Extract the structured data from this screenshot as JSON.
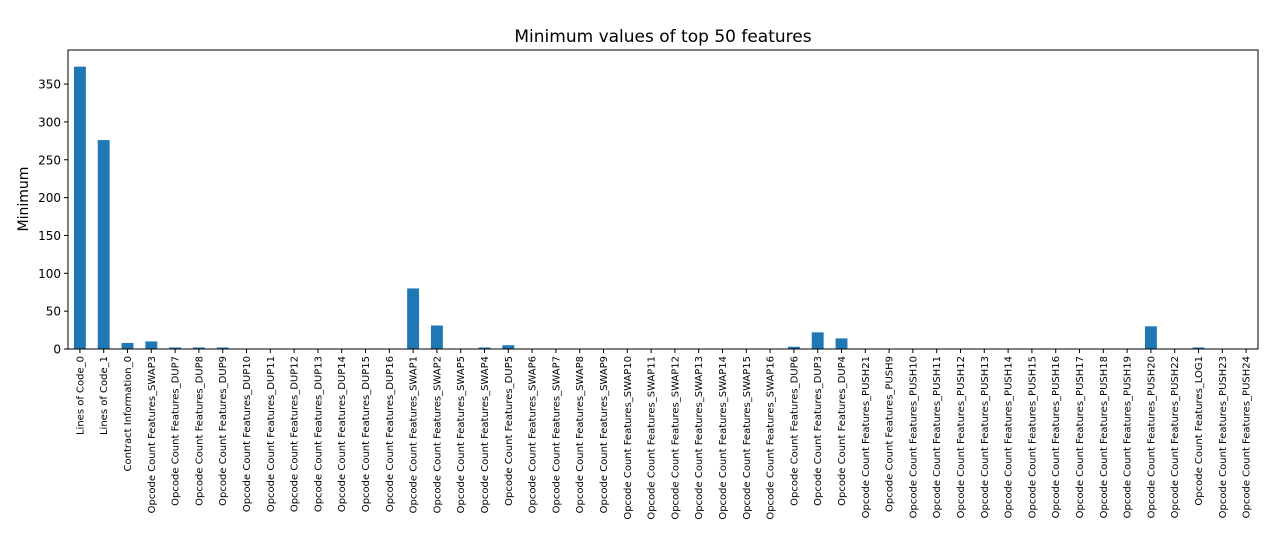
{
  "chart_data": {
    "type": "bar",
    "title": "Minimum values of top 50 features",
    "xlabel": "",
    "ylabel": "Minimum",
    "ylim": [
      0,
      395
    ],
    "yticks": [
      0,
      50,
      100,
      150,
      200,
      250,
      300,
      350
    ],
    "grid": false,
    "legend": "none",
    "bar_color": "#1f77b4",
    "categories": [
      "Lines of Code_0",
      "Lines of Code_1",
      "Contract Information_0",
      "Opcode Count Features_SWAP3",
      "Opcode Count Features_DUP7",
      "Opcode Count Features_DUP8",
      "Opcode Count Features_DUP9",
      "Opcode Count Features_DUP10",
      "Opcode Count Features_DUP11",
      "Opcode Count Features_DUP12",
      "Opcode Count Features_DUP13",
      "Opcode Count Features_DUP14",
      "Opcode Count Features_DUP15",
      "Opcode Count Features_DUP16",
      "Opcode Count Features_SWAP1",
      "Opcode Count Features_SWAP2",
      "Opcode Count Features_SWAP5",
      "Opcode Count Features_SWAP4",
      "Opcode Count Features_DUP5",
      "Opcode Count Features_SWAP6",
      "Opcode Count Features_SWAP7",
      "Opcode Count Features_SWAP8",
      "Opcode Count Features_SWAP9",
      "Opcode Count Features_SWAP10",
      "Opcode Count Features_SWAP11",
      "Opcode Count Features_SWAP12",
      "Opcode Count Features_SWAP13",
      "Opcode Count Features_SWAP14",
      "Opcode Count Features_SWAP15",
      "Opcode Count Features_SWAP16",
      "Opcode Count Features_DUP6",
      "Opcode Count Features_DUP3",
      "Opcode Count Features_DUP4",
      "Opcode Count Features_PUSH21",
      "Opcode Count Features_PUSH9",
      "Opcode Count Features_PUSH10",
      "Opcode Count Features_PUSH11",
      "Opcode Count Features_PUSH12",
      "Opcode Count Features_PUSH13",
      "Opcode Count Features_PUSH14",
      "Opcode Count Features_PUSH15",
      "Opcode Count Features_PUSH16",
      "Opcode Count Features_PUSH17",
      "Opcode Count Features_PUSH18",
      "Opcode Count Features_PUSH19",
      "Opcode Count Features_PUSH20",
      "Opcode Count Features_PUSH22",
      "Opcode Count Features_LOG1",
      "Opcode Count Features_PUSH23",
      "Opcode Count Features_PUSH24"
    ],
    "values": [
      373,
      276,
      8,
      10,
      2,
      2,
      2,
      0,
      0,
      0,
      0,
      0,
      0,
      0,
      80,
      31,
      0,
      2,
      5,
      0,
      0,
      0,
      0,
      0,
      0,
      0,
      0,
      0,
      0,
      0,
      3,
      22,
      14,
      0,
      0,
      0,
      0,
      0,
      0,
      0,
      0,
      0,
      0,
      0,
      0,
      30,
      0,
      2,
      0,
      0
    ]
  }
}
